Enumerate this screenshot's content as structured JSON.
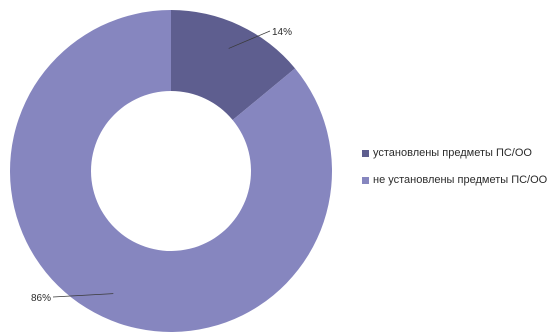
{
  "chart_data": {
    "type": "pie",
    "donut": true,
    "title": "",
    "legend_position": "right",
    "categories": [
      "установлены предметы ПС/ОО",
      "не установлены предметы ПС/ОО"
    ],
    "values": [
      14,
      86
    ],
    "data_labels": [
      "14%",
      "86%"
    ],
    "colors": [
      "#5e5e8f",
      "#8686bf"
    ]
  }
}
